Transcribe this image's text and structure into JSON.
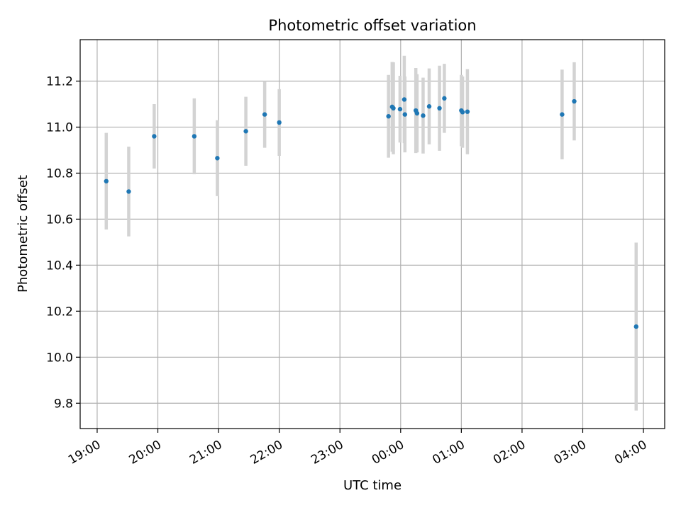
{
  "chart_data": {
    "type": "scatter",
    "title": "Photometric offset variation",
    "xlabel": "UTC time",
    "ylabel": "Photometric offset",
    "x_tick_labels": [
      "19:00",
      "20:00",
      "21:00",
      "22:00",
      "23:00",
      "00:00",
      "01:00",
      "02:00",
      "03:00",
      "04:00"
    ],
    "x_tick_values": [
      19.0,
      20.0,
      21.0,
      22.0,
      23.0,
      24.0,
      25.0,
      26.0,
      27.0,
      28.0
    ],
    "y_ticks": [
      9.8,
      10.0,
      10.2,
      10.4,
      10.6,
      10.8,
      11.0,
      11.2
    ],
    "xlim": [
      18.72,
      28.35
    ],
    "ylim": [
      9.69,
      11.38
    ],
    "grid": true,
    "colors": {
      "point": "#1f77b4",
      "errorbar": "#d3d3d3",
      "grid": "#b0b0b0",
      "axes": "#000000"
    },
    "points": [
      {
        "x": 19.15,
        "y": 10.765,
        "err": 0.21
      },
      {
        "x": 19.52,
        "y": 10.72,
        "err": 0.195
      },
      {
        "x": 19.94,
        "y": 10.96,
        "err": 0.14
      },
      {
        "x": 20.6,
        "y": 10.96,
        "err": 0.165
      },
      {
        "x": 20.98,
        "y": 10.865,
        "err": 0.165
      },
      {
        "x": 21.45,
        "y": 10.982,
        "err": 0.15
      },
      {
        "x": 21.76,
        "y": 11.055,
        "err": 0.145
      },
      {
        "x": 22.0,
        "y": 11.02,
        "err": 0.145
      },
      {
        "x": 23.8,
        "y": 11.047,
        "err": 0.18
      },
      {
        "x": 23.86,
        "y": 11.088,
        "err": 0.195
      },
      {
        "x": 23.88,
        "y": 11.082,
        "err": 0.2
      },
      {
        "x": 23.99,
        "y": 11.078,
        "err": 0.145
      },
      {
        "x": 24.06,
        "y": 11.12,
        "err": 0.19
      },
      {
        "x": 24.07,
        "y": 11.055,
        "err": 0.165
      },
      {
        "x": 24.25,
        "y": 11.072,
        "err": 0.185
      },
      {
        "x": 24.27,
        "y": 11.06,
        "err": 0.17
      },
      {
        "x": 24.37,
        "y": 11.05,
        "err": 0.165
      },
      {
        "x": 24.47,
        "y": 11.09,
        "err": 0.165
      },
      {
        "x": 24.64,
        "y": 11.082,
        "err": 0.185
      },
      {
        "x": 24.72,
        "y": 11.125,
        "err": 0.15
      },
      {
        "x": 25.0,
        "y": 11.072,
        "err": 0.155
      },
      {
        "x": 25.02,
        "y": 11.065,
        "err": 0.155
      },
      {
        "x": 25.1,
        "y": 11.067,
        "err": 0.185
      },
      {
        "x": 26.66,
        "y": 11.055,
        "err": 0.195
      },
      {
        "x": 26.86,
        "y": 11.112,
        "err": 0.17
      },
      {
        "x": 27.88,
        "y": 10.133,
        "err": 0.365
      }
    ]
  }
}
